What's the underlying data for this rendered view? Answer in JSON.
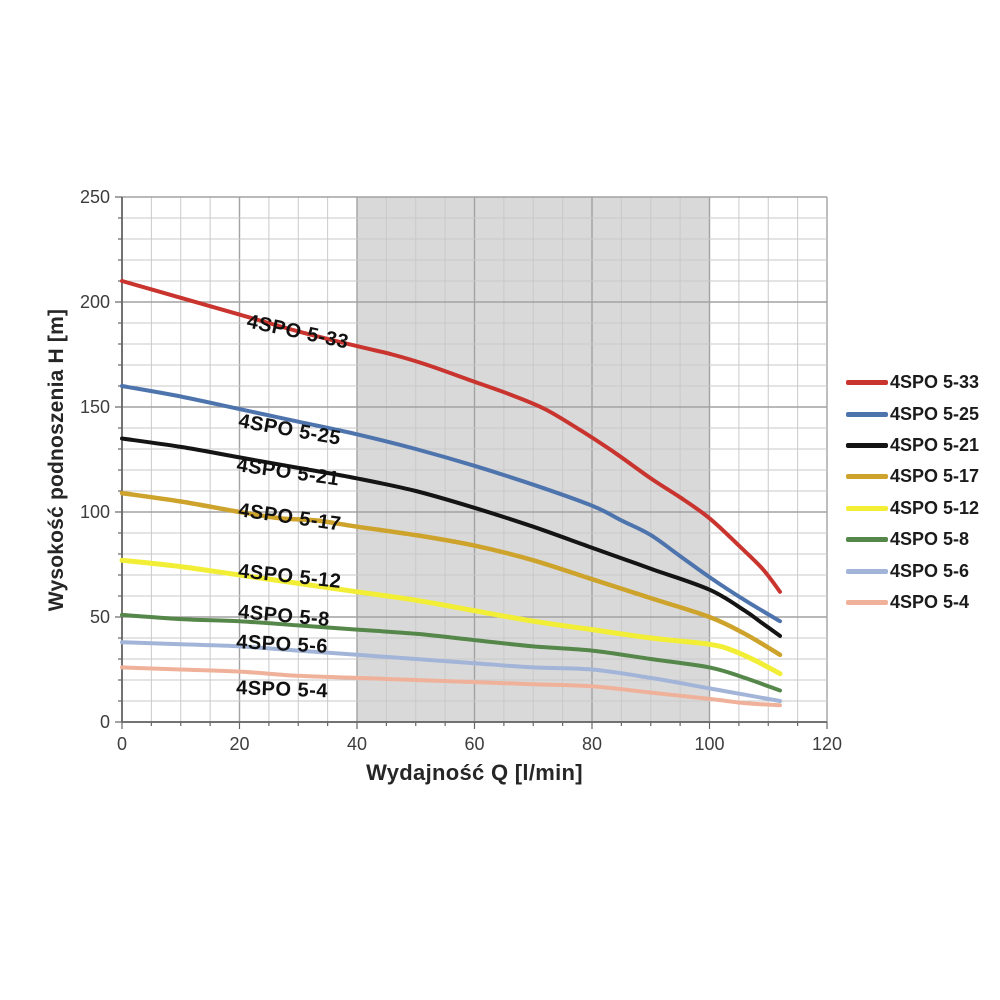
{
  "figure": {
    "background": "#ffffff",
    "grid_minor_color": "#c9c9c9",
    "grid_major_color": "#a2a2a2",
    "axis_color": "#666666",
    "tick_label_color": "#3d3d3d",
    "curve_label_color": "#111111"
  },
  "chart_data": {
    "type": "line",
    "title": "",
    "xlabel": "Wydajność Q [l/min]",
    "ylabel": "Wysokość podnoszenia H [m]",
    "xlim": [
      0,
      120
    ],
    "ylim": [
      0,
      250
    ],
    "x_ticks": [
      0,
      20,
      40,
      60,
      80,
      100,
      120
    ],
    "y_ticks": [
      0,
      50,
      100,
      150,
      200,
      250
    ],
    "x_minor_step": 5,
    "y_minor_step": 10,
    "grid": true,
    "legend_position": "right-outside",
    "shaded_region": {
      "x_from": 40,
      "x_to": 100,
      "color": "#d9d9d9"
    },
    "series": [
      {
        "name": "4SPO 5-33",
        "color": "#c9342e",
        "width": 4,
        "points": [
          [
            0,
            210
          ],
          [
            10,
            202
          ],
          [
            20,
            194
          ],
          [
            30,
            186
          ],
          [
            40,
            179
          ],
          [
            46,
            175
          ],
          [
            52,
            170
          ],
          [
            60,
            162
          ],
          [
            66,
            156
          ],
          [
            72,
            149
          ],
          [
            78,
            139
          ],
          [
            84,
            128
          ],
          [
            90,
            116
          ],
          [
            95,
            107
          ],
          [
            100,
            97
          ],
          [
            105,
            84
          ],
          [
            109,
            73
          ],
          [
            112,
            62
          ]
        ]
      },
      {
        "name": "4SPO 5-25",
        "color": "#4e74ae",
        "width": 4,
        "points": [
          [
            0,
            160
          ],
          [
            10,
            155
          ],
          [
            20,
            149
          ],
          [
            30,
            143
          ],
          [
            40,
            137
          ],
          [
            50,
            130
          ],
          [
            60,
            122
          ],
          [
            70,
            113
          ],
          [
            80,
            103
          ],
          [
            85,
            96
          ],
          [
            90,
            89
          ],
          [
            95,
            79
          ],
          [
            100,
            69
          ],
          [
            106,
            58
          ],
          [
            112,
            48
          ]
        ]
      },
      {
        "name": "4SPO 5-21",
        "color": "#141414",
        "width": 4,
        "points": [
          [
            0,
            135
          ],
          [
            10,
            131
          ],
          [
            20,
            126
          ],
          [
            30,
            121
          ],
          [
            40,
            116
          ],
          [
            50,
            110
          ],
          [
            60,
            102
          ],
          [
            70,
            93
          ],
          [
            80,
            83
          ],
          [
            90,
            73
          ],
          [
            100,
            63
          ],
          [
            106,
            53
          ],
          [
            109,
            47
          ],
          [
            112,
            41
          ]
        ]
      },
      {
        "name": "4SPO 5-17",
        "color": "#cda32c",
        "width": 4.5,
        "points": [
          [
            0,
            109
          ],
          [
            10,
            105
          ],
          [
            20,
            100
          ],
          [
            27,
            97
          ],
          [
            33,
            96
          ],
          [
            40,
            93
          ],
          [
            50,
            89
          ],
          [
            60,
            84
          ],
          [
            70,
            77
          ],
          [
            80,
            68
          ],
          [
            90,
            59
          ],
          [
            100,
            50
          ],
          [
            106,
            42
          ],
          [
            112,
            32
          ]
        ]
      },
      {
        "name": "4SPO 5-12",
        "color": "#f2ee35",
        "width": 5,
        "points": [
          [
            0,
            77
          ],
          [
            10,
            74
          ],
          [
            20,
            70
          ],
          [
            30,
            66
          ],
          [
            40,
            62
          ],
          [
            50,
            58
          ],
          [
            60,
            53
          ],
          [
            70,
            48
          ],
          [
            80,
            44
          ],
          [
            90,
            40
          ],
          [
            100,
            37
          ],
          [
            104,
            34
          ],
          [
            108,
            29
          ],
          [
            112,
            23
          ]
        ]
      },
      {
        "name": "4SPO 5-8",
        "color": "#56874a",
        "width": 4,
        "points": [
          [
            0,
            51
          ],
          [
            10,
            49
          ],
          [
            20,
            48
          ],
          [
            30,
            46
          ],
          [
            40,
            44
          ],
          [
            50,
            42
          ],
          [
            60,
            39
          ],
          [
            70,
            36
          ],
          [
            80,
            34
          ],
          [
            90,
            30
          ],
          [
            100,
            26
          ],
          [
            106,
            21
          ],
          [
            112,
            15
          ]
        ]
      },
      {
        "name": "4SPO 5-6",
        "color": "#a2b5d8",
        "width": 4,
        "points": [
          [
            0,
            38
          ],
          [
            10,
            37
          ],
          [
            20,
            36
          ],
          [
            30,
            34
          ],
          [
            40,
            32
          ],
          [
            50,
            30
          ],
          [
            60,
            28
          ],
          [
            70,
            26
          ],
          [
            80,
            25
          ],
          [
            90,
            21
          ],
          [
            100,
            16
          ],
          [
            106,
            13
          ],
          [
            112,
            10
          ]
        ]
      },
      {
        "name": "4SPO 5-4",
        "color": "#f0b19b",
        "width": 4,
        "points": [
          [
            0,
            26
          ],
          [
            10,
            25
          ],
          [
            20,
            24
          ],
          [
            30,
            22
          ],
          [
            40,
            21
          ],
          [
            50,
            20
          ],
          [
            60,
            19
          ],
          [
            70,
            18
          ],
          [
            80,
            17
          ],
          [
            90,
            14
          ],
          [
            100,
            11
          ],
          [
            106,
            9
          ],
          [
            112,
            8
          ]
        ]
      }
    ],
    "curve_labels": [
      {
        "text": "4SPO 5-33",
        "q": 21.1,
        "h": 188,
        "rot": 12
      },
      {
        "text": "4SPO 5-25",
        "q": 19.7,
        "h": 140.5,
        "rot": 10
      },
      {
        "text": "4SPO 5-21",
        "q": 19.4,
        "h": 119.5,
        "rot": 8
      },
      {
        "text": "4SPO 5-17",
        "q": 19.7,
        "h": 98,
        "rot": 8
      },
      {
        "text": "4SPO 5-12",
        "q": 19.7,
        "h": 69,
        "rot": 6
      },
      {
        "text": "4SPO 5-8",
        "q": 19.7,
        "h": 49.5,
        "rot": 5
      },
      {
        "text": "4SPO 5-6",
        "q": 19.4,
        "h": 35.2,
        "rot": 3
      },
      {
        "text": "4SPO 5-4",
        "q": 19.4,
        "h": 13.3,
        "rot": 2
      }
    ],
    "legend": [
      {
        "label": "4SPO 5-33",
        "color": "#c9342e"
      },
      {
        "label": "4SPO 5-25",
        "color": "#4e74ae"
      },
      {
        "label": "4SPO 5-21",
        "color": "#141414"
      },
      {
        "label": "4SPO 5-17",
        "color": "#cda32c"
      },
      {
        "label": "4SPO 5-12",
        "color": "#f2ee35"
      },
      {
        "label": "4SPO 5-8",
        "color": "#56874a"
      },
      {
        "label": "4SPO 5-6",
        "color": "#a2b5d8"
      },
      {
        "label": "4SPO 5-4",
        "color": "#f0b19b"
      }
    ]
  }
}
